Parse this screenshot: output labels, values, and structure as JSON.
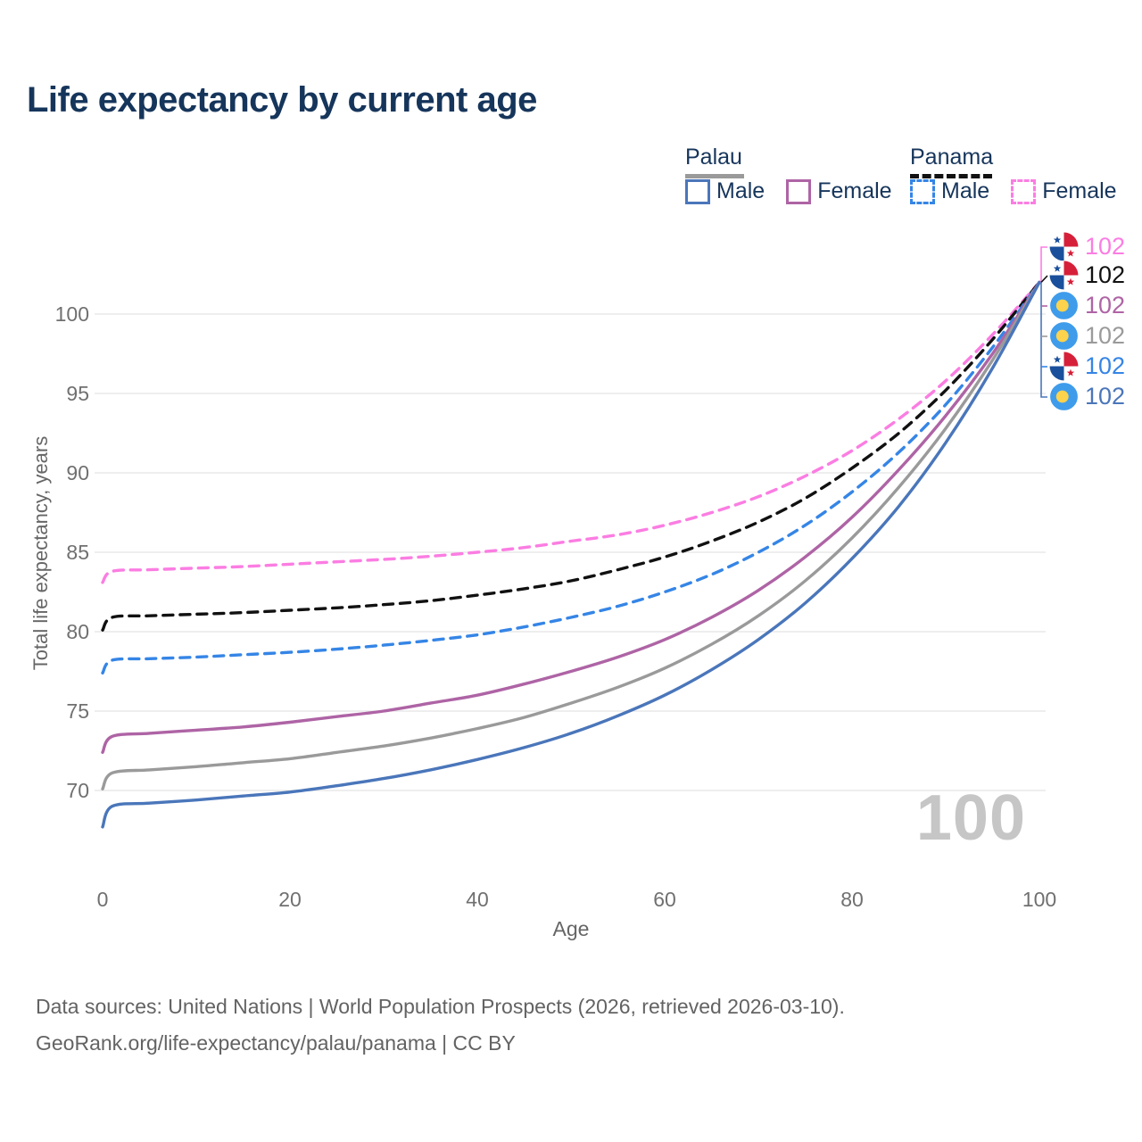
{
  "title": "Life expectancy by current age",
  "legend": {
    "groups": [
      {
        "label": "Palau",
        "line_style": "solid",
        "underline_color": "#9a9a9a",
        "items": [
          {
            "label": "Male",
            "color": "#4a76ba",
            "dashed": false
          },
          {
            "label": "Female",
            "color": "#ae64a5",
            "dashed": false
          }
        ]
      },
      {
        "label": "Panama",
        "line_style": "dashed",
        "underline_color": "#111111",
        "items": [
          {
            "label": "Male",
            "color": "#3585e6",
            "dashed": true
          },
          {
            "label": "Female",
            "color": "#fb7de2",
            "dashed": true
          }
        ]
      }
    ]
  },
  "yaxis": {
    "title": "Total life expectancy, years",
    "ticks": [
      70,
      75,
      80,
      85,
      90,
      95,
      100
    ]
  },
  "xaxis": {
    "title": "Age",
    "ticks": [
      0,
      20,
      40,
      60,
      80,
      100
    ]
  },
  "age_cursor": "100",
  "footer": {
    "line1": "Data sources: United Nations | World Population Prospects (2026, retrieved 2026-03-10).",
    "line2": "GeoRank.org/life-expectancy/palau/panama | CC BY"
  },
  "chart_data": {
    "type": "line",
    "title": "Life expectancy by current age",
    "xlabel": "Age",
    "ylabel": "Total life expectancy, years",
    "xlim": [
      0,
      100
    ],
    "ylim": [
      66,
      103
    ],
    "grid": "horizontal",
    "legend_position": "top-right",
    "x": [
      0,
      1,
      5,
      10,
      15,
      20,
      25,
      30,
      35,
      40,
      45,
      50,
      55,
      60,
      65,
      70,
      75,
      80,
      85,
      90,
      95,
      100
    ],
    "series": [
      {
        "name": "Panama Female",
        "country": "Panama",
        "color": "#fb7de2",
        "dashed": true,
        "values": [
          83.1,
          83.8,
          83.9,
          84.0,
          84.1,
          84.25,
          84.4,
          84.55,
          84.75,
          85.0,
          85.3,
          85.7,
          86.1,
          86.7,
          87.5,
          88.5,
          89.8,
          91.4,
          93.4,
          95.8,
          98.7,
          102
        ]
      },
      {
        "name": "Panama Both sexes",
        "country": "Panama",
        "color": "#111111",
        "dashed": true,
        "values": [
          80.1,
          80.9,
          81.0,
          81.1,
          81.2,
          81.35,
          81.5,
          81.7,
          81.95,
          82.3,
          82.7,
          83.2,
          83.9,
          84.7,
          85.7,
          86.9,
          88.4,
          90.3,
          92.5,
          95.2,
          98.4,
          102
        ]
      },
      {
        "name": "Panama Male",
        "country": "Panama",
        "color": "#3585e6",
        "dashed": true,
        "values": [
          77.4,
          78.2,
          78.3,
          78.4,
          78.55,
          78.7,
          78.9,
          79.15,
          79.45,
          79.8,
          80.3,
          80.9,
          81.6,
          82.5,
          83.6,
          85.0,
          86.7,
          88.8,
          91.3,
          94.3,
          97.9,
          102
        ]
      },
      {
        "name": "Palau Female",
        "country": "Palau",
        "color": "#ae64a5",
        "dashed": false,
        "values": [
          72.4,
          73.4,
          73.6,
          73.8,
          74.0,
          74.3,
          74.65,
          75.0,
          75.5,
          76.0,
          76.7,
          77.5,
          78.4,
          79.5,
          80.9,
          82.6,
          84.7,
          87.2,
          90.2,
          93.6,
          97.5,
          102
        ]
      },
      {
        "name": "Palau Both sexes",
        "country": "Palau",
        "color": "#9a9a9a",
        "dashed": false,
        "values": [
          70.1,
          71.1,
          71.3,
          71.5,
          71.75,
          72.0,
          72.4,
          72.8,
          73.3,
          73.9,
          74.6,
          75.5,
          76.5,
          77.7,
          79.2,
          81.0,
          83.2,
          85.9,
          89.1,
          92.8,
          97.1,
          102
        ]
      },
      {
        "name": "Palau Male",
        "country": "Palau",
        "color": "#4a76ba",
        "dashed": false,
        "values": [
          67.7,
          69.0,
          69.2,
          69.4,
          69.65,
          69.9,
          70.3,
          70.75,
          71.3,
          71.95,
          72.7,
          73.6,
          74.7,
          76.0,
          77.6,
          79.5,
          81.8,
          84.6,
          87.9,
          91.9,
          96.6,
          102
        ]
      }
    ],
    "end_labels": [
      {
        "value": "102",
        "color": "#fb7de2",
        "flag": "panama",
        "series": "Panama Female"
      },
      {
        "value": "102",
        "color": "#111111",
        "flag": "panama",
        "series": "Panama Both sexes"
      },
      {
        "value": "102",
        "color": "#ae64a5",
        "flag": "palau",
        "series": "Palau Female"
      },
      {
        "value": "102",
        "color": "#9a9a9a",
        "flag": "palau",
        "series": "Palau Both sexes"
      },
      {
        "value": "102",
        "color": "#3585e6",
        "flag": "panama",
        "series": "Panama Male"
      },
      {
        "value": "102",
        "color": "#4a76ba",
        "flag": "palau",
        "series": "Palau Male"
      }
    ]
  }
}
